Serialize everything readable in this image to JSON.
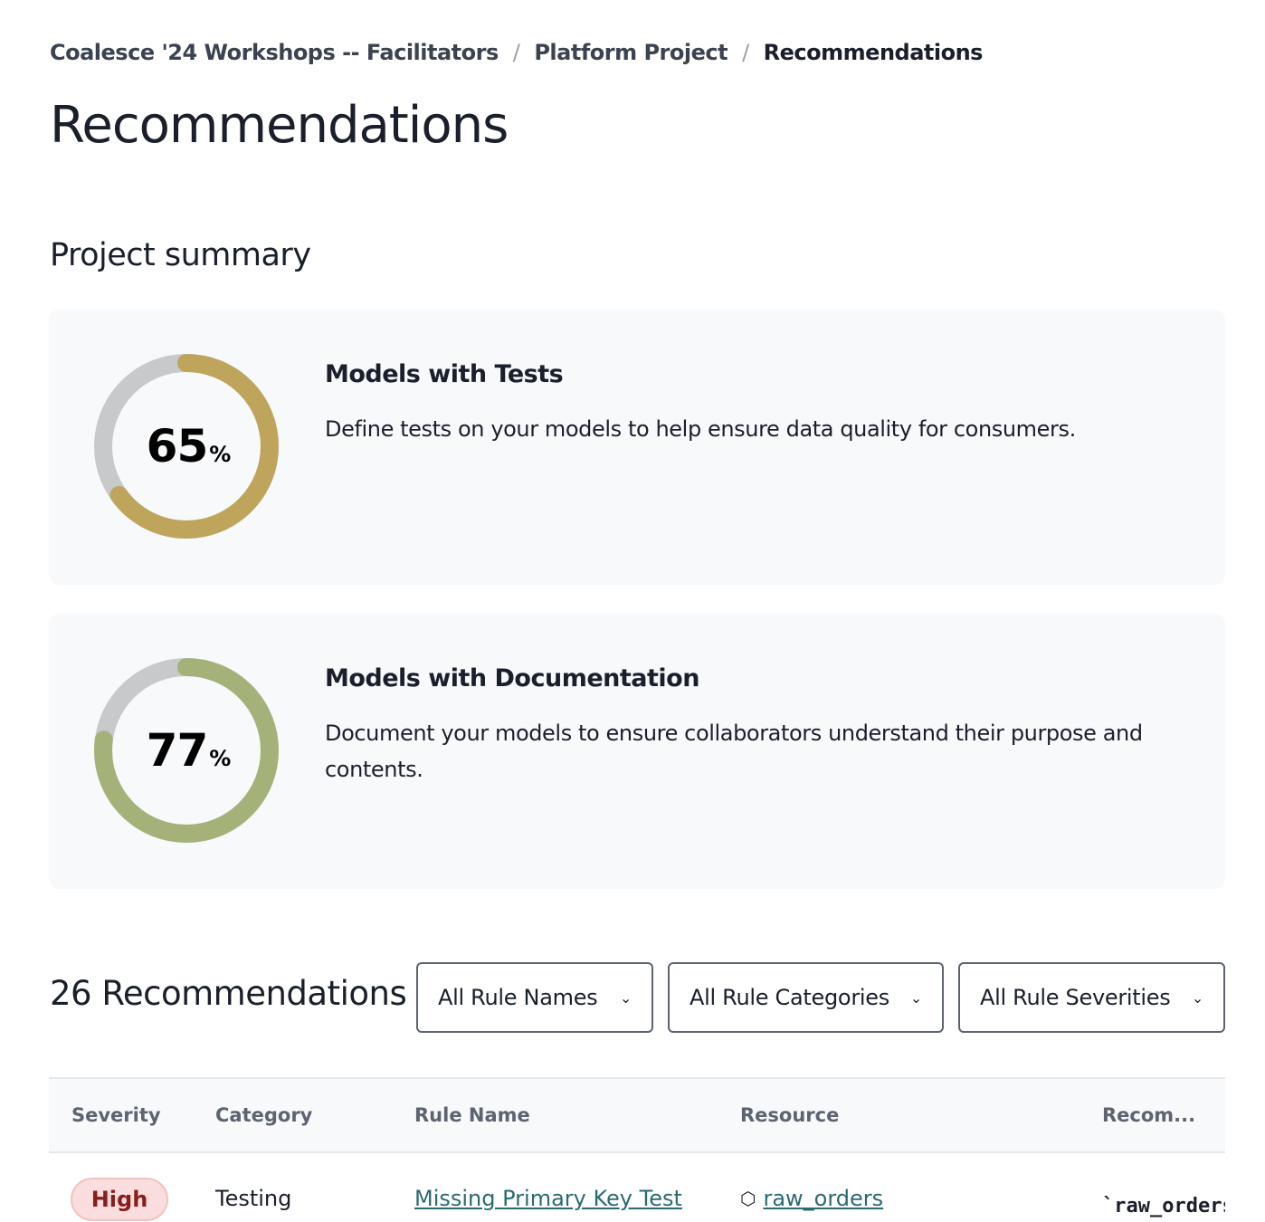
{
  "breadcrumb": [
    "Coalesce '24 Workshops -- Facilitators",
    "Platform Project",
    "Recommendations"
  ],
  "breadcrumb_sep": "/",
  "page_title": "Recommendations",
  "summary": {
    "title": "Project summary",
    "cards": [
      {
        "title": "Models with Tests",
        "description": "Define tests on your models to help ensure data quality for consumers.",
        "value": "65",
        "unit": "%",
        "percent": 65,
        "color": "#bfa55c"
      },
      {
        "title": "Models with Documentation",
        "description": "Document your models to ensure collaborators understand their purpose and contents.",
        "value": "77",
        "unit": "%",
        "percent": 77,
        "color": "#a4b27a"
      }
    ],
    "track_color": "#c8c9cb"
  },
  "recommendations": {
    "count_label": "26 Recommendations",
    "filters": [
      "All Rule Names",
      "All Rule Categories",
      "All Rule Severities"
    ],
    "columns": [
      "Severity",
      "Category",
      "Rule Name",
      "Resource",
      "Recom..."
    ],
    "rows": [
      {
        "severity": "High",
        "category": "Testing",
        "rule_name": "Missing Primary Key Test",
        "resource": "raw_orders",
        "recommendation": "`raw_orders"
      }
    ]
  }
}
